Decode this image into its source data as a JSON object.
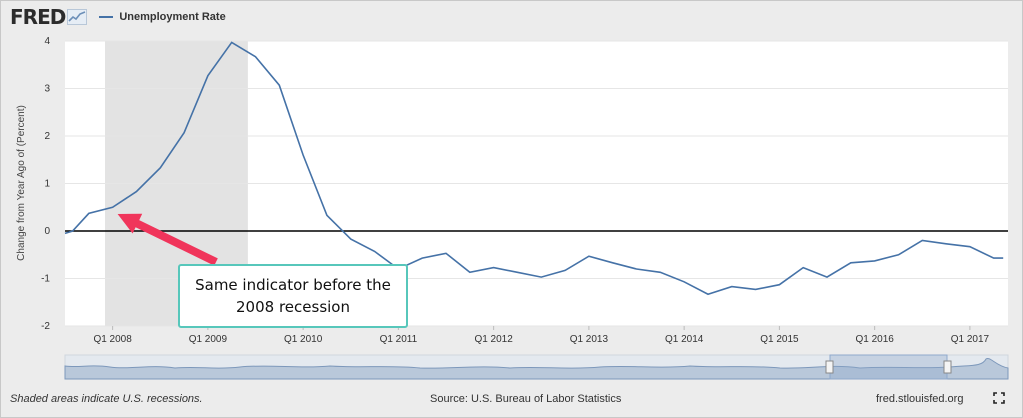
{
  "logo": {
    "text": "FRED"
  },
  "legend": {
    "label": "Unemployment Rate",
    "color": "#4572a7"
  },
  "annotation": {
    "text": "Same indicator before the 2008 recession",
    "border_color": "#57c7bb",
    "arrow_color": "#f0355b",
    "points_to": {
      "x": 2008.0,
      "y": 0.4
    }
  },
  "footer": {
    "left": "Shaded areas indicate U.S. recessions.",
    "source": "Source: U.S. Bureau of Labor Statistics",
    "site": "fred.stlouisfed.org"
  },
  "chart_data": {
    "type": "line",
    "title": "Unemployment Rate",
    "xlabel": "",
    "ylabel": "Change from Year Ago of (Percent)",
    "xlim": [
      2007.5,
      2017.4
    ],
    "ylim": [
      -2,
      4
    ],
    "yticks": [
      -2,
      -1,
      0,
      1,
      2,
      3,
      4
    ],
    "xticks": [
      {
        "label": "Q1 2008",
        "x": 2008.0
      },
      {
        "label": "Q1 2009",
        "x": 2009.0
      },
      {
        "label": "Q1 2010",
        "x": 2010.0
      },
      {
        "label": "Q1 2011",
        "x": 2011.0
      },
      {
        "label": "Q1 2012",
        "x": 2012.0
      },
      {
        "label": "Q1 2013",
        "x": 2013.0
      },
      {
        "label": "Q1 2014",
        "x": 2014.0
      },
      {
        "label": "Q1 2015",
        "x": 2015.0
      },
      {
        "label": "Q1 2016",
        "x": 2016.0
      },
      {
        "label": "Q1 2017",
        "x": 2017.0
      }
    ],
    "recession": [
      2007.92,
      2009.42
    ],
    "series": [
      {
        "name": "Unemployment Rate",
        "color": "#4572a7",
        "x": [
          2007.5,
          2007.58,
          2007.75,
          2008.0,
          2008.25,
          2008.5,
          2008.75,
          2009.0,
          2009.25,
          2009.5,
          2009.75,
          2010.0,
          2010.25,
          2010.5,
          2010.75,
          2011.0,
          2011.25,
          2011.5,
          2011.75,
          2012.0,
          2012.25,
          2012.5,
          2012.75,
          2013.0,
          2013.25,
          2013.5,
          2013.75,
          2014.0,
          2014.25,
          2014.5,
          2014.75,
          2015.0,
          2015.25,
          2015.5,
          2015.75,
          2016.0,
          2016.25,
          2016.5,
          2016.75,
          2017.0,
          2017.25,
          2017.35
        ],
        "values": [
          -0.05,
          0.0,
          0.37,
          0.5,
          0.83,
          1.33,
          2.07,
          3.27,
          3.97,
          3.67,
          3.07,
          1.6,
          0.33,
          -0.17,
          -0.43,
          -0.8,
          -0.57,
          -0.47,
          -0.87,
          -0.77,
          -0.87,
          -0.97,
          -0.83,
          -0.53,
          -0.67,
          -0.8,
          -0.87,
          -1.07,
          -1.33,
          -1.17,
          -1.23,
          -1.13,
          -0.77,
          -0.97,
          -0.67,
          -0.63,
          -0.5,
          -0.2,
          -0.27,
          -0.33,
          -0.57,
          -0.57
        ]
      }
    ]
  }
}
